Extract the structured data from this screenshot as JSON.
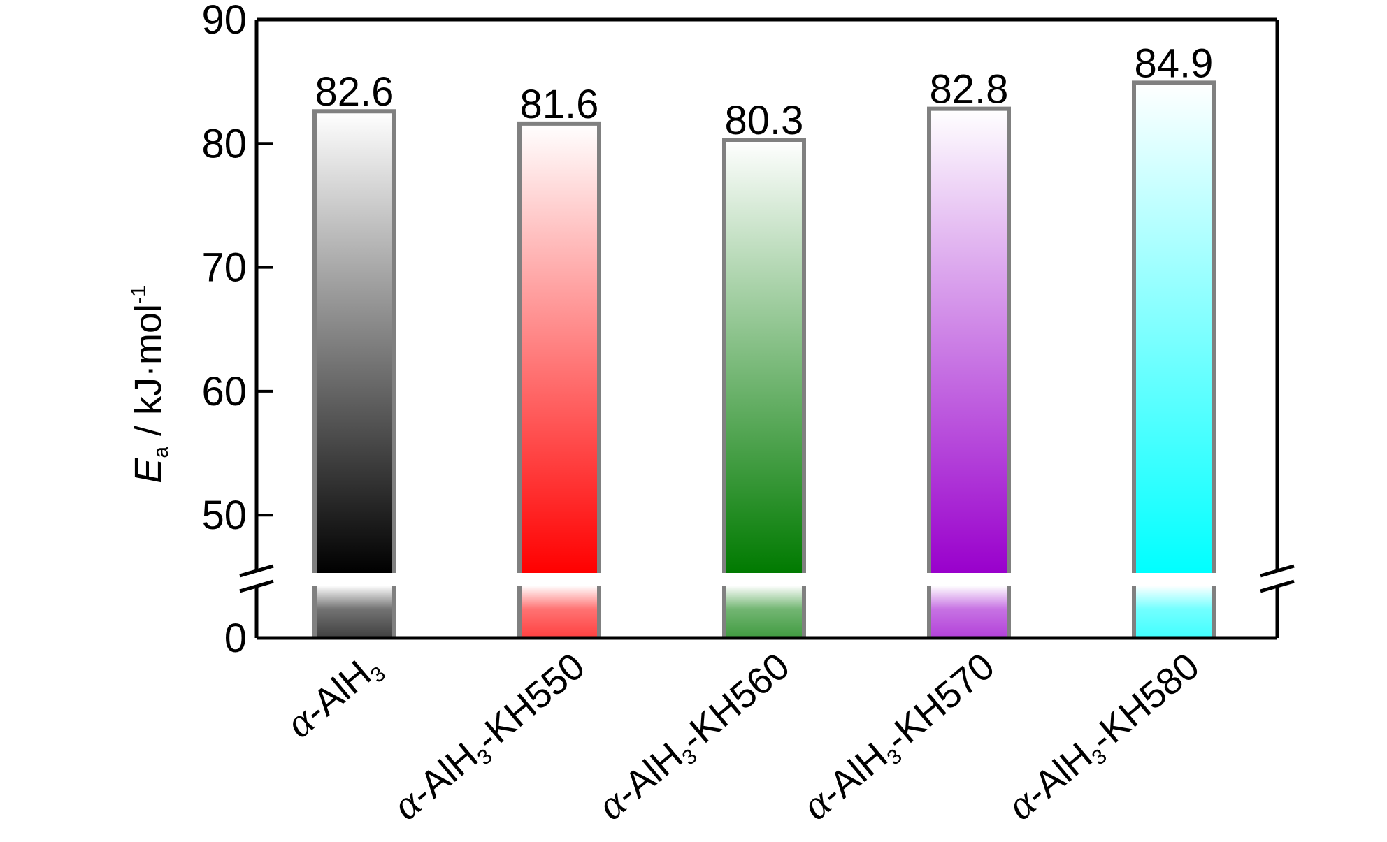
{
  "chart_data": {
    "type": "bar",
    "categories": [
      {
        "prefix": "α",
        "main": "-AlH",
        "sub": "3",
        "suffix": ""
      },
      {
        "prefix": "α",
        "main": "-AlH",
        "sub": "3",
        "suffix": "-KH550"
      },
      {
        "prefix": "α",
        "main": "-AlH",
        "sub": "3",
        "suffix": "-KH560"
      },
      {
        "prefix": "α",
        "main": "-AlH",
        "sub": "3",
        "suffix": "-KH570"
      },
      {
        "prefix": "α",
        "main": "-AlH",
        "sub": "3",
        "suffix": "-KH580"
      }
    ],
    "values": [
      82.6,
      81.6,
      80.3,
      82.8,
      84.9
    ],
    "value_labels": [
      "82.6",
      "81.6",
      "80.3",
      "82.8",
      "84.9"
    ],
    "colors": [
      "#000000",
      "#ff0000",
      "#007a00",
      "#9900cc",
      "#00ffff"
    ],
    "ylabel": {
      "symbol": "E",
      "sub": "a",
      "unit": " / kJ·mol",
      "sup": "-1"
    },
    "yticks_upper": [
      50,
      60,
      70,
      80,
      90
    ],
    "yticks_lower": [
      0
    ],
    "ylim_upper": [
      45.5,
      90
    ],
    "ylim_lower": [
      0,
      5
    ],
    "axis_break": true,
    "grid": false,
    "legend": "none"
  }
}
